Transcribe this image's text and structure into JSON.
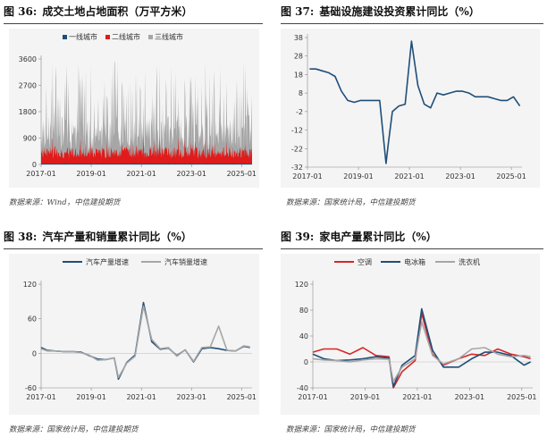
{
  "panels": [
    {
      "id": "fig36",
      "number": "图 36:",
      "title": "成交土地占地面积（万平方米）",
      "source": "数据来源：Wind，中信建投期货",
      "chart_data": {
        "type": "area",
        "title": "成交土地占地面积（万平方米）",
        "series": [
          {
            "name": "一线城市",
            "color": "#1f4e79"
          },
          {
            "name": "二线城市",
            "color": "#e01b1b"
          },
          {
            "name": "三线城市",
            "color": "#a6a6a6"
          }
        ],
        "y_ticks": [
          0,
          900,
          1800,
          2700,
          3600
        ],
        "ylim": [
          0,
          3600
        ],
        "x_ticks": [
          "2017-01",
          "2019-01",
          "2021-01",
          "2023-01",
          "2025-01"
        ],
        "x_range": [
          "2017-01",
          "2025-06"
        ],
        "typical_levels": {
          "一线城市": 30,
          "二线城市": 400,
          "三线城市": 1400
        },
        "peak_max": 3600
      }
    },
    {
      "id": "fig37",
      "number": "图 37:",
      "title": "基础设施建设投资累计同比（%）",
      "source": "数据来源：国家统计局，中信建投期货",
      "chart_data": {
        "type": "line",
        "title": "基础设施建设投资累计同比（%）",
        "series": [
          {
            "name": "",
            "color": "#1f4e79",
            "x": [
              "2017-02",
              "2017-05",
              "2017-08",
              "2017-11",
              "2018-02",
              "2018-05",
              "2018-08",
              "2018-11",
              "2019-02",
              "2019-05",
              "2019-08",
              "2019-11",
              "2020-02",
              "2020-03",
              "2020-05",
              "2020-08",
              "2020-11",
              "2021-02",
              "2021-05",
              "2021-08",
              "2021-11",
              "2022-02",
              "2022-05",
              "2022-08",
              "2022-11",
              "2023-02",
              "2023-05",
              "2023-08",
              "2023-11",
              "2024-02",
              "2024-05",
              "2024-08",
              "2024-11",
              "2025-02",
              "2025-05"
            ],
            "values": [
              21,
              21,
              20,
              19,
              17,
              9,
              4,
              3,
              4,
              4,
              4,
              4,
              -30,
              -20,
              -2,
              1,
              2,
              36,
              12,
              2,
              0,
              8,
              7,
              8,
              9,
              9,
              8,
              6,
              6,
              6,
              5,
              4,
              4,
              6,
              1
            ]
          }
        ],
        "y_ticks": [
          -32,
          -22,
          -12,
          -2,
          8,
          18,
          28,
          38
        ],
        "ylim": [
          -32,
          38
        ],
        "x_ticks": [
          "2017-01",
          "2019-01",
          "2021-01",
          "2023-01",
          "2025-01"
        ],
        "x_range": [
          "2017-01",
          "2025-06"
        ]
      }
    },
    {
      "id": "fig38",
      "number": "图 38:",
      "title": "汽车产量和销量累计同比（%）",
      "source": "数据来源：国家统计局，中信建投期货",
      "chart_data": {
        "type": "line",
        "title": "汽车产量和销量累计同比（%）",
        "series": [
          {
            "name": "汽车产量增速",
            "color": "#1f4e79",
            "x": [
              "2017-01",
              "2017-04",
              "2017-08",
              "2017-12",
              "2018-04",
              "2018-08",
              "2018-12",
              "2019-04",
              "2019-08",
              "2019-12",
              "2020-02",
              "2020-06",
              "2020-10",
              "2021-02",
              "2021-06",
              "2021-10",
              "2022-02",
              "2022-06",
              "2022-10",
              "2023-02",
              "2023-06",
              "2023-10",
              "2024-02",
              "2024-06",
              "2024-10",
              "2025-02",
              "2025-05"
            ],
            "values": [
              10,
              5,
              4,
              3,
              3,
              2,
              -4,
              -10,
              -11,
              -8,
              -45,
              -16,
              -3,
              88,
              20,
              7,
              9,
              -4,
              6,
              -15,
              8,
              10,
              8,
              5,
              4,
              12,
              10
            ]
          },
          {
            "name": "汽车销量增速",
            "color": "#a6a6a6",
            "x": [
              "2017-01",
              "2017-04",
              "2017-08",
              "2017-12",
              "2018-04",
              "2018-08",
              "2018-12",
              "2019-04",
              "2019-08",
              "2019-12",
              "2020-02",
              "2020-06",
              "2020-10",
              "2021-02",
              "2021-06",
              "2021-10",
              "2022-02",
              "2022-06",
              "2022-10",
              "2023-02",
              "2023-06",
              "2023-10",
              "2024-02",
              "2024-06",
              "2024-10",
              "2025-02",
              "2025-05"
            ],
            "values": [
              8,
              4,
              4,
              3,
              3,
              1,
              -3,
              -12,
              -11,
              -8,
              -42,
              -17,
              -5,
              82,
              24,
              8,
              10,
              -5,
              6,
              -14,
              10,
              11,
              47,
              5,
              4,
              13,
              11
            ]
          }
        ],
        "y_ticks": [
          -60,
          0,
          60,
          120
        ],
        "ylim": [
          -60,
          120
        ],
        "x_ticks": [
          "2017-01",
          "2019-01",
          "2021-01",
          "2023-01",
          "2025-01"
        ],
        "x_range": [
          "2017-01",
          "2025-06"
        ]
      }
    },
    {
      "id": "fig39",
      "number": "图 39:",
      "title": "家电产量累计同比（%）",
      "source": "数据来源：国家统计局，中信建投期货",
      "chart_data": {
        "type": "line",
        "title": "家电产量累计同比（%）",
        "series": [
          {
            "name": "空调",
            "color": "#d62728",
            "x": [
              "2017-01",
              "2017-06",
              "2017-12",
              "2018-06",
              "2018-12",
              "2019-06",
              "2019-12",
              "2020-02",
              "2020-06",
              "2020-12",
              "2021-03",
              "2021-08",
              "2022-01",
              "2022-08",
              "2023-02",
              "2023-08",
              "2024-02",
              "2024-08",
              "2025-02",
              "2025-05"
            ],
            "values": [
              15,
              20,
              20,
              12,
              22,
              10,
              8,
              -40,
              -15,
              2,
              75,
              12,
              -5,
              5,
              12,
              10,
              20,
              12,
              8,
              5
            ]
          },
          {
            "name": "电冰箱",
            "color": "#1f4e79",
            "x": [
              "2017-01",
              "2017-06",
              "2017-12",
              "2018-06",
              "2018-12",
              "2019-06",
              "2019-12",
              "2020-02",
              "2020-06",
              "2020-12",
              "2021-03",
              "2021-08",
              "2022-01",
              "2022-08",
              "2023-02",
              "2023-08",
              "2024-02",
              "2024-08",
              "2025-02",
              "2025-05"
            ],
            "values": [
              12,
              5,
              2,
              3,
              5,
              8,
              6,
              -38,
              -5,
              10,
              82,
              18,
              -8,
              -8,
              5,
              15,
              15,
              10,
              -5,
              0
            ]
          },
          {
            "name": "洗衣机",
            "color": "#a6a6a6",
            "x": [
              "2017-01",
              "2017-06",
              "2017-12",
              "2018-06",
              "2018-12",
              "2019-06",
              "2019-12",
              "2020-02",
              "2020-06",
              "2020-12",
              "2021-03",
              "2021-08",
              "2022-01",
              "2022-08",
              "2023-02",
              "2023-08",
              "2024-02",
              "2024-08",
              "2025-02",
              "2025-05"
            ],
            "values": [
              5,
              3,
              2,
              0,
              3,
              5,
              4,
              -30,
              -8,
              5,
              62,
              10,
              -3,
              5,
              20,
              22,
              12,
              8,
              10,
              8
            ]
          }
        ],
        "y_ticks": [
          -40,
          0,
          40,
          80,
          120
        ],
        "ylim": [
          -40,
          120
        ],
        "x_ticks": [
          "2017-01",
          "2019-01",
          "2021-01",
          "2023-01",
          "2025-01"
        ],
        "x_range": [
          "2017-01",
          "2025-06"
        ]
      }
    }
  ]
}
